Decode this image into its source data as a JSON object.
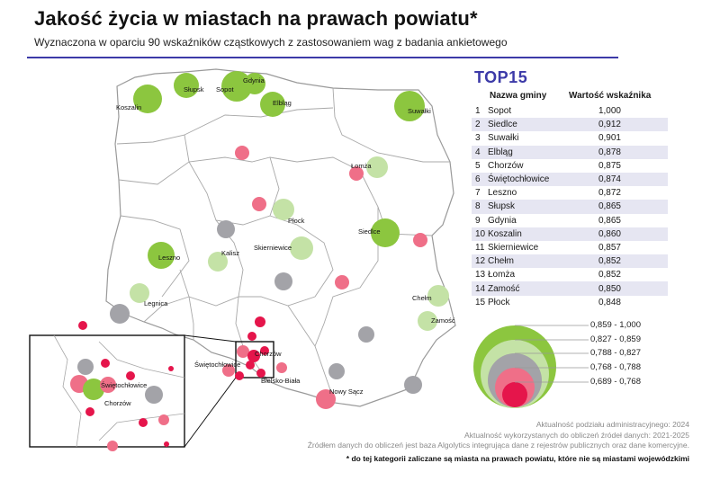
{
  "header": {
    "title": "Jakość życia w miastach na prawach powiatu*",
    "subtitle": "Wyznaczona w oparciu 90 wskaźników cząstkowych z zastosowaniem wag z badania ankietowego"
  },
  "top15": {
    "title": "TOP15",
    "col_name": "Nazwa gminy",
    "col_value": "Wartość wskaźnika",
    "rows": [
      {
        "rank": "1",
        "name": "Sopot",
        "value": "1,000"
      },
      {
        "rank": "2",
        "name": "Siedlce",
        "value": "0,912"
      },
      {
        "rank": "3",
        "name": "Suwałki",
        "value": "0,901"
      },
      {
        "rank": "4",
        "name": "Elbląg",
        "value": "0,878"
      },
      {
        "rank": "5",
        "name": "Chorzów",
        "value": "0,875"
      },
      {
        "rank": "6",
        "name": "Świętochłowice",
        "value": "0,874"
      },
      {
        "rank": "7",
        "name": "Leszno",
        "value": "0,872"
      },
      {
        "rank": "8",
        "name": "Słupsk",
        "value": "0,865"
      },
      {
        "rank": "9",
        "name": "Gdynia",
        "value": "0,865"
      },
      {
        "rank": "10",
        "name": "Koszalin",
        "value": "0,860"
      },
      {
        "rank": "11",
        "name": "Skierniewice",
        "value": "0,857"
      },
      {
        "rank": "12",
        "name": "Chełm",
        "value": "0,852"
      },
      {
        "rank": "13",
        "name": "Łomża",
        "value": "0,852"
      },
      {
        "rank": "14",
        "name": "Zamość",
        "value": "0,850"
      },
      {
        "rank": "15",
        "name": "Płock",
        "value": "0,848"
      }
    ]
  },
  "legend": {
    "classes": [
      {
        "label": "0,859 - 1,000",
        "color": "#8cc63f"
      },
      {
        "label": "0,827 - 0,859",
        "color": "#c4e2a6"
      },
      {
        "label": "0,788 - 0,827",
        "color": "#a3a3a8"
      },
      {
        "label": "0,768 - 0,788",
        "color": "#ef6f88"
      },
      {
        "label": "0,689 - 0,768",
        "color": "#e5154b"
      }
    ]
  },
  "map_labels": {
    "koszalin": "Koszalin",
    "slupsk": "Słupsk",
    "gdynia": "Gdynia",
    "sopot": "Sopot",
    "elblag": "Elbląg",
    "suwalki": "Suwałki",
    "lomza": "Łomża",
    "plock": "Płock",
    "siedlce": "Siedlce",
    "leszno": "Leszno",
    "kalisz": "Kalisz",
    "skierniewice": "Skierniewice",
    "legnica": "Legnica",
    "chelm": "Chełm",
    "zamosc": "Zamość",
    "chorzow": "Chorzów",
    "swietochlowice": "Świętochłowice",
    "bielsko": "Bielsko-Biała",
    "nowy_sacz": "Nowy Sącz",
    "inset_swietochlowice": "Świętochłowice",
    "inset_chorzow": "Chorzów"
  },
  "footer": {
    "line1": "Aktualność podziału administracyjnego: 2024",
    "line2": "Aktualność wykorzystanych do obliczeń źródeł danych: 2021-2025",
    "line3": "Źródłem danych do obliczeń jest baza Algolytics integrująca dane z rejestrów publicznych oraz dane komercyjne.",
    "note": "* do tej kategorii zaliczane są miasta na prawach powiatu, które nie są miastami wojewódzkimi"
  }
}
